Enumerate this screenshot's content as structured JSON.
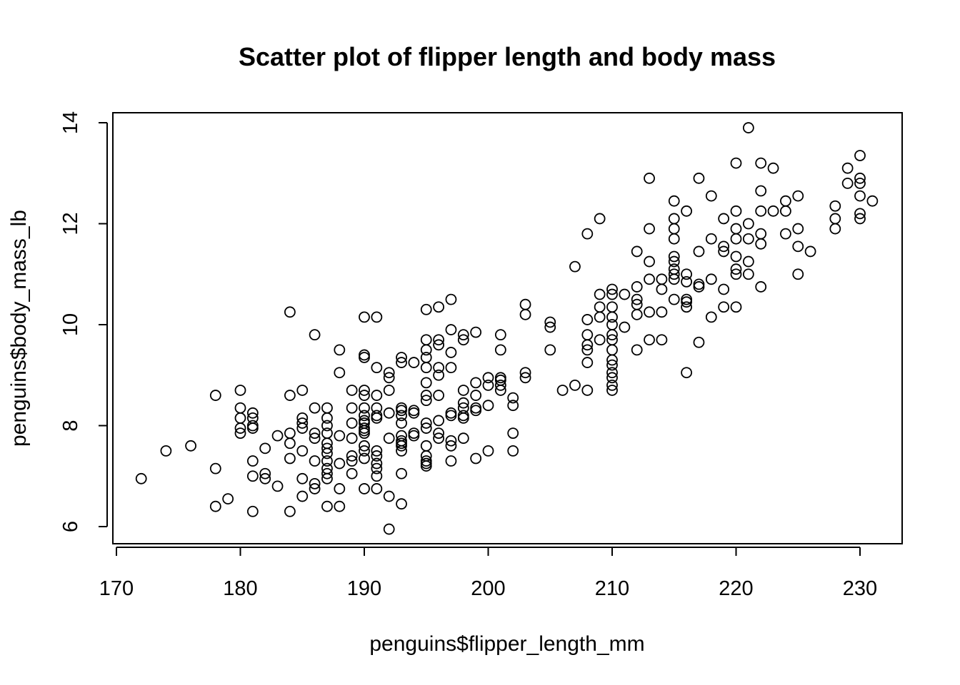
{
  "chart_data": {
    "type": "scatter",
    "title": "Scatter plot of flipper length and body mass",
    "xlabel": "penguins$flipper_length_mm",
    "ylabel": "penguins$body_mass_lb",
    "xlim": [
      170,
      232
    ],
    "ylim": [
      5.75,
      14.25
    ],
    "x_ticks": [
      170,
      180,
      190,
      200,
      210,
      220,
      230
    ],
    "y_ticks": [
      6,
      8,
      10,
      12,
      14
    ],
    "grid": false,
    "legend": "none",
    "point_color": "#000000",
    "points": [
      [
        172,
        6.95
      ],
      [
        174,
        7.5
      ],
      [
        176,
        7.6
      ],
      [
        178,
        8.6
      ],
      [
        178,
        7.15
      ],
      [
        178,
        6.4
      ],
      [
        179,
        6.55
      ],
      [
        180,
        8.7
      ],
      [
        180,
        8.35
      ],
      [
        180,
        8.15
      ],
      [
        180,
        7.95
      ],
      [
        180,
        7.85
      ],
      [
        181,
        8.25
      ],
      [
        181,
        8.15
      ],
      [
        181,
        8.0
      ],
      [
        181,
        7.95
      ],
      [
        181,
        7.3
      ],
      [
        181,
        7.0
      ],
      [
        181,
        6.3
      ],
      [
        182,
        7.55
      ],
      [
        182,
        7.05
      ],
      [
        182,
        6.95
      ],
      [
        183,
        7.8
      ],
      [
        183,
        6.8
      ],
      [
        184,
        10.25
      ],
      [
        184,
        8.6
      ],
      [
        184,
        7.85
      ],
      [
        184,
        7.65
      ],
      [
        184,
        7.35
      ],
      [
        184,
        6.3
      ],
      [
        185,
        8.7
      ],
      [
        185,
        8.15
      ],
      [
        185,
        8.05
      ],
      [
        185,
        7.95
      ],
      [
        185,
        7.5
      ],
      [
        185,
        6.95
      ],
      [
        185,
        6.6
      ],
      [
        186,
        9.8
      ],
      [
        186,
        8.35
      ],
      [
        186,
        7.85
      ],
      [
        186,
        7.75
      ],
      [
        186,
        7.3
      ],
      [
        186,
        6.85
      ],
      [
        186,
        6.75
      ],
      [
        187,
        8.35
      ],
      [
        187,
        8.15
      ],
      [
        187,
        8.0
      ],
      [
        187,
        7.85
      ],
      [
        187,
        7.65
      ],
      [
        187,
        7.55
      ],
      [
        187,
        7.45
      ],
      [
        187,
        7.3
      ],
      [
        187,
        7.15
      ],
      [
        187,
        7.05
      ],
      [
        187,
        6.95
      ],
      [
        187,
        6.4
      ],
      [
        188,
        9.5
      ],
      [
        188,
        9.05
      ],
      [
        188,
        7.8
      ],
      [
        188,
        7.25
      ],
      [
        188,
        6.75
      ],
      [
        188,
        6.4
      ],
      [
        189,
        8.7
      ],
      [
        189,
        8.35
      ],
      [
        189,
        8.05
      ],
      [
        189,
        7.75
      ],
      [
        189,
        7.4
      ],
      [
        189,
        7.3
      ],
      [
        189,
        7.05
      ],
      [
        190,
        10.15
      ],
      [
        190,
        9.4
      ],
      [
        190,
        9.35
      ],
      [
        190,
        8.7
      ],
      [
        190,
        8.6
      ],
      [
        190,
        8.35
      ],
      [
        190,
        8.2
      ],
      [
        190,
        8.1
      ],
      [
        190,
        8.05
      ],
      [
        190,
        7.95
      ],
      [
        190,
        7.9
      ],
      [
        190,
        7.85
      ],
      [
        190,
        7.6
      ],
      [
        190,
        7.5
      ],
      [
        190,
        7.35
      ],
      [
        190,
        6.75
      ],
      [
        191,
        10.15
      ],
      [
        191,
        9.15
      ],
      [
        191,
        8.6
      ],
      [
        191,
        8.35
      ],
      [
        191,
        8.2
      ],
      [
        191,
        8.15
      ],
      [
        191,
        7.5
      ],
      [
        191,
        7.4
      ],
      [
        191,
        7.25
      ],
      [
        191,
        7.15
      ],
      [
        191,
        7.0
      ],
      [
        191,
        6.75
      ],
      [
        192,
        9.05
      ],
      [
        192,
        8.95
      ],
      [
        192,
        8.7
      ],
      [
        192,
        8.25
      ],
      [
        192,
        7.75
      ],
      [
        192,
        6.6
      ],
      [
        192,
        5.95
      ],
      [
        193,
        9.35
      ],
      [
        193,
        9.25
      ],
      [
        193,
        8.35
      ],
      [
        193,
        8.3
      ],
      [
        193,
        8.2
      ],
      [
        193,
        8.05
      ],
      [
        193,
        7.8
      ],
      [
        193,
        7.7
      ],
      [
        193,
        7.65
      ],
      [
        193,
        7.6
      ],
      [
        193,
        7.5
      ],
      [
        193,
        7.05
      ],
      [
        193,
        6.45
      ],
      [
        194,
        9.25
      ],
      [
        194,
        8.3
      ],
      [
        194,
        8.25
      ],
      [
        194,
        7.85
      ],
      [
        194,
        7.8
      ],
      [
        195,
        10.3
      ],
      [
        195,
        9.7
      ],
      [
        195,
        9.5
      ],
      [
        195,
        9.35
      ],
      [
        195,
        9.15
      ],
      [
        195,
        8.85
      ],
      [
        195,
        8.6
      ],
      [
        195,
        8.5
      ],
      [
        195,
        8.05
      ],
      [
        195,
        7.95
      ],
      [
        195,
        7.6
      ],
      [
        195,
        7.4
      ],
      [
        195,
        7.3
      ],
      [
        195,
        7.25
      ],
      [
        195,
        7.2
      ],
      [
        196,
        10.35
      ],
      [
        196,
        9.7
      ],
      [
        196,
        9.6
      ],
      [
        196,
        9.15
      ],
      [
        196,
        9.0
      ],
      [
        196,
        8.6
      ],
      [
        196,
        8.1
      ],
      [
        196,
        7.85
      ],
      [
        196,
        7.75
      ],
      [
        197,
        10.5
      ],
      [
        197,
        9.9
      ],
      [
        197,
        9.45
      ],
      [
        197,
        9.15
      ],
      [
        197,
        8.25
      ],
      [
        197,
        8.2
      ],
      [
        197,
        7.7
      ],
      [
        197,
        7.6
      ],
      [
        197,
        7.3
      ],
      [
        198,
        9.8
      ],
      [
        198,
        9.7
      ],
      [
        198,
        8.7
      ],
      [
        198,
        8.45
      ],
      [
        198,
        8.35
      ],
      [
        198,
        8.2
      ],
      [
        198,
        8.15
      ],
      [
        198,
        7.75
      ],
      [
        199,
        9.85
      ],
      [
        199,
        8.85
      ],
      [
        199,
        8.6
      ],
      [
        199,
        8.35
      ],
      [
        199,
        8.3
      ],
      [
        199,
        7.35
      ],
      [
        200,
        8.95
      ],
      [
        200,
        8.8
      ],
      [
        200,
        8.4
      ],
      [
        200,
        7.5
      ],
      [
        201,
        9.8
      ],
      [
        201,
        9.5
      ],
      [
        201,
        8.95
      ],
      [
        201,
        8.9
      ],
      [
        201,
        8.8
      ],
      [
        201,
        8.7
      ],
      [
        202,
        8.55
      ],
      [
        202,
        8.4
      ],
      [
        202,
        7.85
      ],
      [
        202,
        7.5
      ],
      [
        203,
        10.4
      ],
      [
        203,
        10.2
      ],
      [
        203,
        9.05
      ],
      [
        203,
        8.95
      ],
      [
        205,
        10.05
      ],
      [
        205,
        9.95
      ],
      [
        205,
        9.5
      ],
      [
        206,
        8.7
      ],
      [
        207,
        11.15
      ],
      [
        207,
        8.8
      ],
      [
        208,
        11.8
      ],
      [
        208,
        10.1
      ],
      [
        208,
        9.8
      ],
      [
        208,
        9.6
      ],
      [
        208,
        9.5
      ],
      [
        208,
        9.25
      ],
      [
        208,
        8.7
      ],
      [
        209,
        12.1
      ],
      [
        209,
        10.6
      ],
      [
        209,
        10.35
      ],
      [
        209,
        10.15
      ],
      [
        209,
        9.7
      ],
      [
        210,
        10.7
      ],
      [
        210,
        10.6
      ],
      [
        210,
        10.35
      ],
      [
        210,
        10.15
      ],
      [
        210,
        10.0
      ],
      [
        210,
        9.8
      ],
      [
        210,
        9.7
      ],
      [
        210,
        9.5
      ],
      [
        210,
        9.3
      ],
      [
        210,
        9.2
      ],
      [
        210,
        9.05
      ],
      [
        210,
        8.95
      ],
      [
        210,
        8.8
      ],
      [
        210,
        8.7
      ],
      [
        211,
        10.6
      ],
      [
        211,
        9.95
      ],
      [
        212,
        11.45
      ],
      [
        212,
        10.75
      ],
      [
        212,
        10.5
      ],
      [
        212,
        10.4
      ],
      [
        212,
        10.2
      ],
      [
        212,
        9.5
      ],
      [
        213,
        12.9
      ],
      [
        213,
        11.9
      ],
      [
        213,
        11.25
      ],
      [
        213,
        10.9
      ],
      [
        213,
        10.25
      ],
      [
        213,
        9.7
      ],
      [
        214,
        10.9
      ],
      [
        214,
        10.7
      ],
      [
        214,
        10.25
      ],
      [
        214,
        9.7
      ],
      [
        215,
        12.45
      ],
      [
        215,
        12.1
      ],
      [
        215,
        11.9
      ],
      [
        215,
        11.7
      ],
      [
        215,
        11.35
      ],
      [
        215,
        11.25
      ],
      [
        215,
        11.1
      ],
      [
        215,
        11.0
      ],
      [
        215,
        10.9
      ],
      [
        215,
        10.5
      ],
      [
        216,
        12.25
      ],
      [
        216,
        11.0
      ],
      [
        216,
        10.85
      ],
      [
        216,
        10.5
      ],
      [
        216,
        10.45
      ],
      [
        216,
        10.35
      ],
      [
        216,
        9.05
      ],
      [
        217,
        12.9
      ],
      [
        217,
        11.45
      ],
      [
        217,
        10.8
      ],
      [
        217,
        10.75
      ],
      [
        217,
        9.65
      ],
      [
        218,
        12.55
      ],
      [
        218,
        11.7
      ],
      [
        218,
        10.9
      ],
      [
        218,
        10.15
      ],
      [
        219,
        12.1
      ],
      [
        219,
        11.55
      ],
      [
        219,
        11.45
      ],
      [
        219,
        10.7
      ],
      [
        219,
        10.35
      ],
      [
        220,
        13.2
      ],
      [
        220,
        12.25
      ],
      [
        220,
        11.9
      ],
      [
        220,
        11.7
      ],
      [
        220,
        11.35
      ],
      [
        220,
        11.1
      ],
      [
        220,
        11.0
      ],
      [
        220,
        10.35
      ],
      [
        221,
        13.9
      ],
      [
        221,
        12.0
      ],
      [
        221,
        11.7
      ],
      [
        221,
        11.25
      ],
      [
        221,
        11.0
      ],
      [
        222,
        13.2
      ],
      [
        222,
        12.65
      ],
      [
        222,
        12.25
      ],
      [
        222,
        11.8
      ],
      [
        222,
        11.6
      ],
      [
        222,
        10.75
      ],
      [
        223,
        13.1
      ],
      [
        223,
        12.25
      ],
      [
        224,
        12.45
      ],
      [
        224,
        12.25
      ],
      [
        224,
        11.8
      ],
      [
        225,
        12.55
      ],
      [
        225,
        11.9
      ],
      [
        225,
        11.55
      ],
      [
        225,
        11.0
      ],
      [
        226,
        11.45
      ],
      [
        228,
        12.35
      ],
      [
        228,
        12.1
      ],
      [
        228,
        11.9
      ],
      [
        229,
        13.1
      ],
      [
        229,
        12.8
      ],
      [
        230,
        13.35
      ],
      [
        230,
        12.9
      ],
      [
        230,
        12.8
      ],
      [
        230,
        12.55
      ],
      [
        230,
        12.2
      ],
      [
        230,
        12.1
      ],
      [
        231,
        12.45
      ]
    ]
  }
}
